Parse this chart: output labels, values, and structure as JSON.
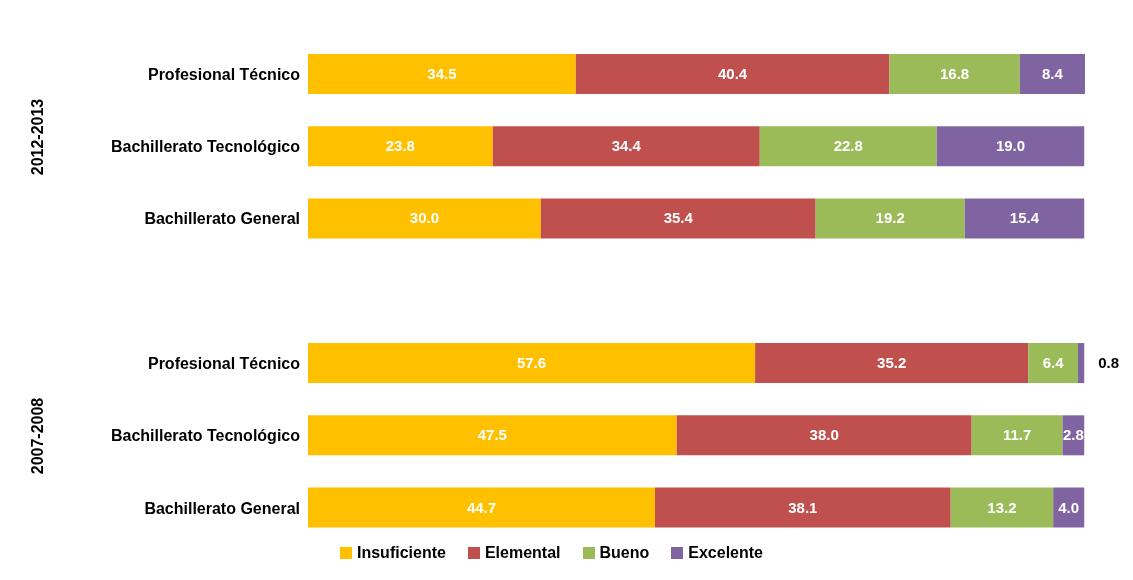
{
  "chart_data": {
    "type": "bar",
    "orientation": "horizontal",
    "stacked": true,
    "legend": "bottom",
    "categories": [
      "Profesional Técnico",
      "Bachillerato Tecnológico",
      "Bachillerato General",
      null,
      "Profesional Técnico",
      "Bachillerato Tecnológico",
      "Bachillerato General"
    ],
    "series": [
      {
        "name": "Insuficiente",
        "color": "#ffc000",
        "values": [
          34.5,
          23.8,
          30.0,
          null,
          57.6,
          47.5,
          44.7
        ],
        "value_labels": [
          "34.5",
          "23.8",
          "30.0",
          null,
          "57.6",
          "47.5",
          "44.7"
        ]
      },
      {
        "name": "Elemental",
        "color": "#c0504d",
        "values": [
          40.4,
          34.4,
          35.4,
          null,
          35.2,
          38.0,
          38.1
        ],
        "value_labels": [
          "40.4",
          "34.4",
          "35.4",
          null,
          "35.2",
          "38.0",
          "38.1"
        ]
      },
      {
        "name": "Bueno",
        "color": "#9bbb59",
        "values": [
          16.8,
          22.8,
          19.2,
          null,
          6.4,
          11.7,
          13.2
        ],
        "value_labels": [
          "16.8",
          "22.8",
          "19.2",
          null,
          "6.4",
          "11.7",
          "13.2"
        ]
      },
      {
        "name": "Excelente",
        "color": "#8064a2",
        "values": [
          8.4,
          19.0,
          15.4,
          null,
          0.8,
          2.8,
          4.0
        ],
        "value_labels": [
          "8.4",
          "19.0",
          "15.4",
          null,
          "0.8",
          "2.8",
          "4.0"
        ]
      }
    ],
    "annotations": [
      "2012-2013",
      "2007-2008"
    ]
  }
}
